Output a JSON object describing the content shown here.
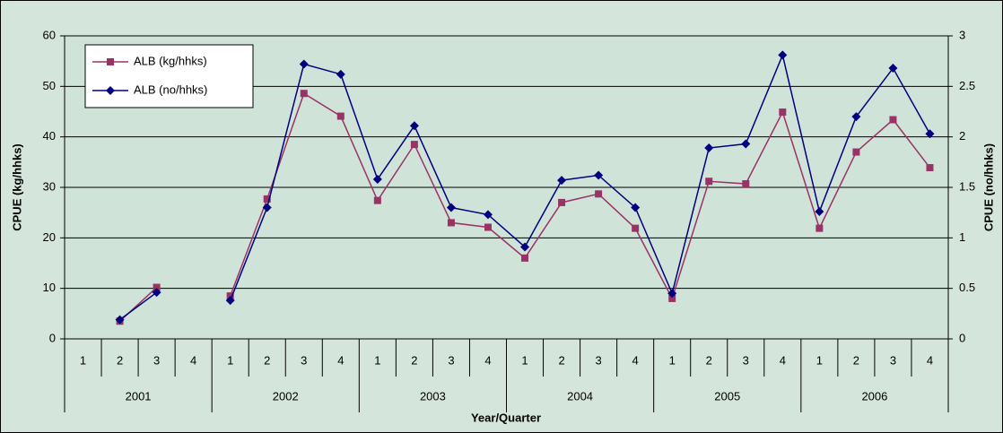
{
  "chart_data": {
    "type": "line",
    "x_label": "Year/Quarter",
    "y_label": "CPUE (kg/hhks)",
    "y2_label": "CPUE (no/hhks)",
    "categories": [
      "1",
      "2",
      "3",
      "4",
      "1",
      "2",
      "3",
      "4",
      "1",
      "2",
      "3",
      "4",
      "1",
      "2",
      "3",
      "4",
      "1",
      "2",
      "3",
      "4",
      "1",
      "2",
      "3",
      "4"
    ],
    "groups": [
      "2001",
      "2002",
      "2003",
      "2004",
      "2005",
      "2006"
    ],
    "series": [
      {
        "name": "ALB (kg/hhks)",
        "color": "#993366",
        "marker": "square",
        "values": [
          null,
          3.5,
          10.2,
          null,
          8.5,
          27.7,
          48.6,
          44.1,
          27.4,
          38.5,
          23.0,
          22.1,
          16.0,
          27.0,
          28.7,
          21.9,
          8.0,
          31.2,
          30.7,
          44.9,
          21.9,
          37.0,
          43.4,
          33.9
        ]
      },
      {
        "name": "ALB (no/hhks)",
        "color": "#000080",
        "marker": "diamond",
        "axis": "y2",
        "values": [
          null,
          0.19,
          0.46,
          null,
          0.38,
          1.3,
          2.72,
          2.62,
          1.58,
          2.11,
          1.3,
          1.23,
          0.91,
          1.57,
          1.62,
          1.3,
          0.45,
          1.89,
          1.93,
          2.81,
          1.26,
          2.2,
          2.68,
          2.03
        ]
      }
    ],
    "ylim": [
      0,
      60
    ],
    "yticks": [
      0,
      10,
      20,
      30,
      40,
      50,
      60
    ],
    "y2lim": [
      0,
      3
    ],
    "y2ticks": [
      0,
      0.5,
      1,
      1.5,
      2,
      2.5,
      3
    ],
    "grid": true,
    "legend": "top-left"
  }
}
